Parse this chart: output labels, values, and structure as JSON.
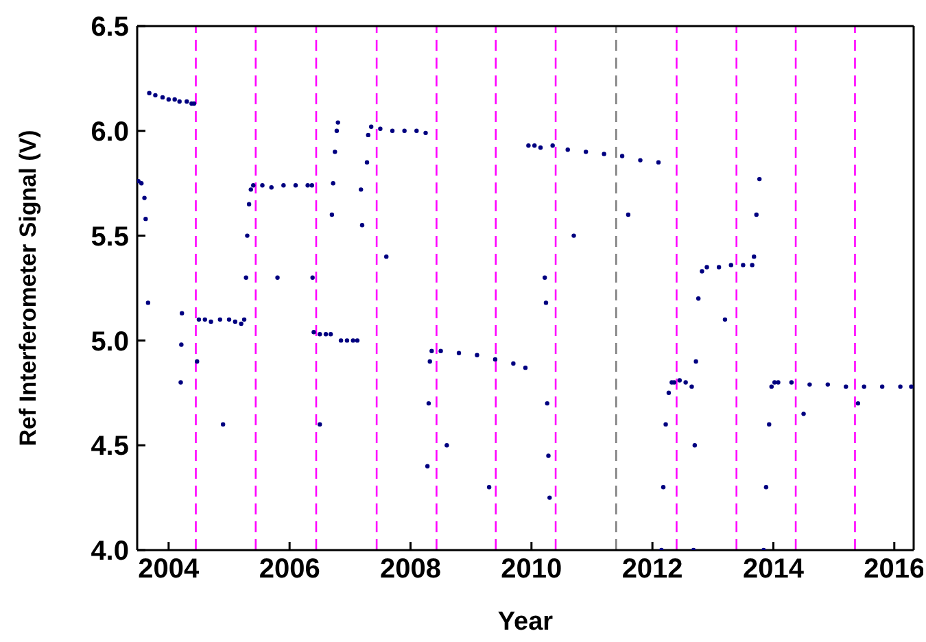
{
  "chart_data": {
    "type": "scatter",
    "xlabel": "Year",
    "ylabel": "Ref Interferometer Signal (V)",
    "xlim": [
      2003.48,
      2016.32
    ],
    "xticks": [
      2004,
      2006,
      2008,
      2010,
      2012,
      2014,
      2016
    ],
    "ylim": [
      4,
      6.5
    ],
    "yticks": [
      {
        "value": 4,
        "label": "4.0"
      },
      {
        "value": 4.5,
        "label": "4.5"
      },
      {
        "value": 5,
        "label": "5.0"
      },
      {
        "value": 5.5,
        "label": "5.5"
      },
      {
        "value": 6,
        "label": "6.0"
      },
      {
        "value": 6.5,
        "label": "6.5"
      }
    ],
    "legend": false,
    "marker": "circle",
    "series": [
      {
        "color": "#000080",
        "x": [
          2003.5,
          2003.55,
          2003.6,
          2003.62,
          2003.66,
          2003.68,
          2003.78,
          2003.9,
          2004.0,
          2004.1,
          2004.18,
          2004.2,
          2004.21,
          2004.22,
          2004.3,
          2004.38,
          2004.42,
          2004.47,
          2004.5,
          2004.6,
          2004.7,
          2004.85,
          2005.0,
          2005.1,
          2005.2,
          2005.25,
          2005.28,
          2005.3,
          2005.33,
          2005.36,
          2005.4,
          2005.55,
          2005.7,
          2005.9,
          2006.1,
          2006.3,
          2006.37,
          2006.38,
          2006.4,
          2006.5,
          2006.6,
          2006.68,
          2006.7,
          2006.72,
          2006.75,
          2006.78,
          2006.8,
          2006.85,
          2006.95,
          2007.05,
          2007.12,
          2007.18,
          2007.2,
          2007.28,
          2007.3,
          2007.35,
          2007.5,
          2007.7,
          2007.9,
          2008.1,
          2008.25,
          2008.28,
          2008.3,
          2008.32,
          2008.35,
          2008.5,
          2008.8,
          2009.1,
          2009.4,
          2009.7,
          2009.9,
          2009.95,
          2010.05,
          2010.15,
          2010.22,
          2010.24,
          2010.26,
          2010.28,
          2010.3,
          2010.35,
          2010.6,
          2010.9,
          2011.2,
          2011.5,
          2011.8,
          2012.1,
          2012.15,
          2012.18,
          2012.22,
          2012.27,
          2012.32,
          2012.36,
          2012.45,
          2012.55,
          2012.65,
          2012.68,
          2012.7,
          2012.72,
          2012.76,
          2012.82,
          2012.9,
          2013.1,
          2013.3,
          2013.5,
          2013.65,
          2013.68,
          2013.72,
          2013.77,
          2013.84,
          2013.88,
          2013.93,
          2013.97,
          2014.02,
          2014.08,
          2014.3,
          2014.6,
          2014.9,
          2015.2,
          2015.5,
          2015.8,
          2016.1,
          2016.28,
          2004.9,
          2005.8,
          2006.5,
          2007.6,
          2008.6,
          2009.3,
          2010.7,
          2011.6,
          2013.2,
          2014.5,
          2015.4
        ],
        "values": [
          5.76,
          5.75,
          5.68,
          5.58,
          5.18,
          6.18,
          6.17,
          6.16,
          6.15,
          6.15,
          6.14,
          4.8,
          4.98,
          5.13,
          6.14,
          6.13,
          6.13,
          4.9,
          5.1,
          5.1,
          5.09,
          5.1,
          5.1,
          5.09,
          5.08,
          5.1,
          5.3,
          5.5,
          5.65,
          5.72,
          5.74,
          5.74,
          5.73,
          5.74,
          5.74,
          5.74,
          5.74,
          5.3,
          5.04,
          5.03,
          5.03,
          5.03,
          5.6,
          5.75,
          5.9,
          6.0,
          6.04,
          5.0,
          5.0,
          5.0,
          5.0,
          5.72,
          5.55,
          5.85,
          5.98,
          6.02,
          6.01,
          6.0,
          6.0,
          6.0,
          5.99,
          4.4,
          4.7,
          4.9,
          4.95,
          4.95,
          4.94,
          4.93,
          4.91,
          4.89,
          4.87,
          5.93,
          5.93,
          5.92,
          5.3,
          5.18,
          4.7,
          4.45,
          4.25,
          5.93,
          5.91,
          5.9,
          5.89,
          5.88,
          5.86,
          5.85,
          4.0,
          4.3,
          4.6,
          4.75,
          4.8,
          4.8,
          4.81,
          4.8,
          4.78,
          4.0,
          4.5,
          4.9,
          5.2,
          5.33,
          5.35,
          5.35,
          5.36,
          5.36,
          5.36,
          5.4,
          5.6,
          5.77,
          4.0,
          4.3,
          4.6,
          4.78,
          4.8,
          4.8,
          4.8,
          4.79,
          4.79,
          4.78,
          4.78,
          4.78,
          4.78,
          4.78,
          4.6,
          5.3,
          4.6,
          5.4,
          4.5,
          4.3,
          5.5,
          5.6,
          5.1,
          4.65,
          4.7
        ]
      }
    ],
    "ref_lines": [
      {
        "axis": "x",
        "value": 2004.45,
        "color": "#ff00ff",
        "line_style": "dashed"
      },
      {
        "axis": "x",
        "value": 2005.44,
        "color": "#ff00ff",
        "line_style": "dashed"
      },
      {
        "axis": "x",
        "value": 2006.44,
        "color": "#ff00ff",
        "line_style": "dashed"
      },
      {
        "axis": "x",
        "value": 2007.44,
        "color": "#ff00ff",
        "line_style": "dashed"
      },
      {
        "axis": "x",
        "value": 2008.43,
        "color": "#ff00ff",
        "line_style": "dashed"
      },
      {
        "axis": "x",
        "value": 2009.41,
        "color": "#ff00ff",
        "line_style": "dashed"
      },
      {
        "axis": "x",
        "value": 2010.4,
        "color": "#ff00ff",
        "line_style": "dashed"
      },
      {
        "axis": "x",
        "value": 2011.4,
        "color": "#808080",
        "line_style": "dashed"
      },
      {
        "axis": "x",
        "value": 2012.4,
        "color": "#ff00ff",
        "line_style": "dashed"
      },
      {
        "axis": "x",
        "value": 2013.39,
        "color": "#ff00ff",
        "line_style": "dashed"
      },
      {
        "axis": "x",
        "value": 2014.37,
        "color": "#ff00ff",
        "line_style": "dashed"
      },
      {
        "axis": "x",
        "value": 2015.35,
        "color": "#ff00ff",
        "line_style": "dashed"
      }
    ]
  }
}
